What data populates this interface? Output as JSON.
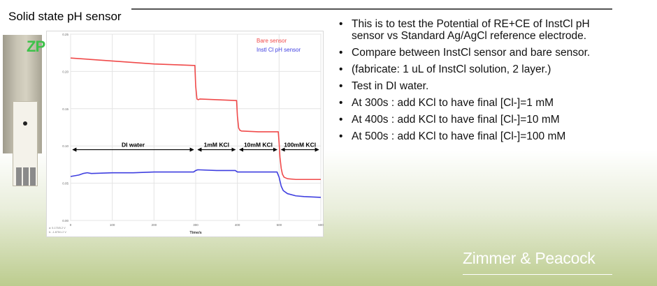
{
  "slide": {
    "title": "Solid state pH sensor",
    "logo_text": "ZP",
    "brand": "Zimmer & Peacock"
  },
  "bullets": [
    "This is to test the Potential of RE+CE of InstCl pH sensor vs Standard Ag/AgCl reference electrode.",
    "Compare between InstCl sensor and bare sensor.",
    "(fabricate: 1 uL of InstCl solution, 2 layer.)",
    "Test in DI water.",
    "At 300s : add KCl to have final [Cl-]=1 mM",
    "At 400s : add KCl to have final [Cl-]=10 mM",
    "At 500s : add KCl to have final [Cl-]=100 mM"
  ],
  "colors": {
    "bare": "#f04a4a",
    "instcl": "#3f3fe0",
    "logo": "#3ec24a"
  },
  "chart_data": {
    "type": "line",
    "xlabel": "Time/s",
    "ylabel": "",
    "xlim": [
      0,
      600
    ],
    "ylim": [
      0,
      0.25
    ],
    "xticks": [
      0,
      100,
      200,
      300,
      400,
      500,
      600
    ],
    "yticks": [
      0.0,
      0.05,
      0.1,
      0.15,
      0.2,
      0.25
    ],
    "xtick_labels": [
      "0",
      "100",
      "200",
      "300",
      "400",
      "500",
      "600"
    ],
    "ytick_labels": [
      "0.00",
      "0.05",
      "0.10",
      "0.15",
      "0.20",
      "0.25"
    ],
    "grid": true,
    "legend": "top-right",
    "series": [
      {
        "name": "Bare sensor",
        "x": [
          0,
          50,
          100,
          150,
          200,
          250,
          295,
          298,
          300,
          303,
          306,
          310,
          350,
          395,
          398,
          400,
          403,
          406,
          410,
          450,
          495,
          498,
          500,
          502,
          505,
          508,
          512,
          520,
          540,
          560,
          600
        ],
        "y": [
          0.218,
          0.216,
          0.214,
          0.212,
          0.21,
          0.209,
          0.208,
          0.208,
          0.18,
          0.163,
          0.162,
          0.163,
          0.162,
          0.161,
          0.161,
          0.14,
          0.124,
          0.121,
          0.12,
          0.119,
          0.119,
          0.119,
          0.104,
          0.085,
          0.07,
          0.062,
          0.058,
          0.056,
          0.055,
          0.055,
          0.055
        ]
      },
      {
        "name": "Instl Cl pH sensor",
        "x": [
          0,
          20,
          30,
          40,
          50,
          100,
          150,
          200,
          250,
          295,
          300,
          305,
          350,
          395,
          400,
          405,
          450,
          495,
          500,
          505,
          510,
          520,
          540,
          560,
          600
        ],
        "y": [
          0.059,
          0.061,
          0.063,
          0.064,
          0.063,
          0.064,
          0.064,
          0.065,
          0.065,
          0.065,
          0.067,
          0.068,
          0.067,
          0.067,
          0.065,
          0.065,
          0.065,
          0.065,
          0.058,
          0.046,
          0.04,
          0.036,
          0.033,
          0.032,
          0.031
        ]
      }
    ],
    "annotations": [
      {
        "text": "DI water",
        "x0": 0,
        "x1": 300,
        "y": 0.095
      },
      {
        "text": "1mM KCl",
        "x0": 300,
        "x1": 400,
        "y": 0.095
      },
      {
        "text": "10mM KCl",
        "x0": 400,
        "x1": 500,
        "y": 0.095
      },
      {
        "text": "100mM KCl",
        "x0": 500,
        "x1": 600,
        "y": 0.095
      }
    ],
    "corner_note": [
      "a: 5.175/5.2 V",
      "b: -1.875/1.2 V"
    ]
  }
}
